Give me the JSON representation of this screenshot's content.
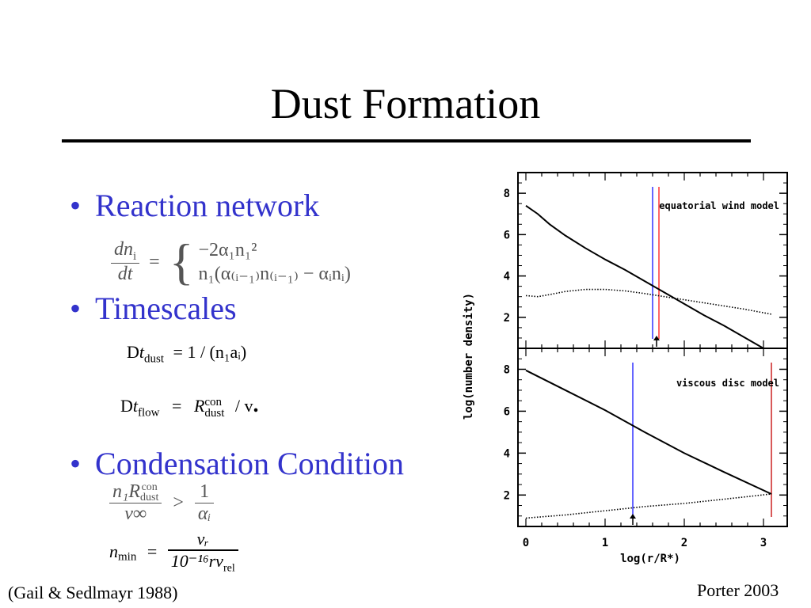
{
  "slide": {
    "title": "Dust Formation",
    "bullets": [
      "Reaction network",
      "Timescales",
      "Condensation Condition"
    ],
    "citation_left": "(Gail & Sedlmayr 1988)",
    "citation_right": "Porter 2003"
  },
  "equations": {
    "reaction": {
      "lhs_num": "dn",
      "lhs_num_sub": "i",
      "lhs_den": "dt",
      "eq": "=",
      "case1": "−2α₁n₁²",
      "case2": "n₁(α₍ᵢ₋₁₎n₍ᵢ₋₁₎ − αᵢnᵢ)"
    },
    "t_dust": {
      "delta": "D",
      "t": "t",
      "sub": "dust",
      "rhs": "= 1 / (n₁aᵢ)"
    },
    "t_flow": {
      "delta": "D",
      "t": "t",
      "sub": "flow",
      "eq": "=",
      "R": "R",
      "R_sup": "con",
      "R_sub": "dust",
      "rest": "/ v",
      "dot": "."
    },
    "condition": {
      "num": "n₁R",
      "num_sup": "con",
      "num_sub": "dust",
      "den": "v∞",
      "gt": ">",
      "rnum": "1",
      "rden": "αᵢ"
    },
    "nmin": {
      "lhs": "n",
      "lhs_sub": "min",
      "eq": "=",
      "num": "vᵣ",
      "den": "10⁻¹⁶rv",
      "den_sub": "rel"
    }
  },
  "chart_data": {
    "type": "line",
    "ylabel": "log(number density)",
    "xlabel": "log(r/R*)",
    "xlim": [
      -0.1,
      3.3
    ],
    "ylim": [
      0.5,
      9
    ],
    "xticks": [
      "0",
      "1",
      "2",
      "3"
    ],
    "yticks": [
      "2",
      "4",
      "6",
      "8"
    ],
    "panels": [
      {
        "label": "equatorial wind model",
        "series": [
          {
            "style": "solid",
            "x": [
              0,
              0.15,
              0.3,
              0.5,
              0.75,
              1.0,
              1.25,
              1.5,
              1.75,
              2.0,
              2.25,
              2.5,
              2.75,
              3.0
            ],
            "y": [
              7.4,
              7.0,
              6.5,
              5.95,
              5.35,
              4.8,
              4.3,
              3.75,
              3.2,
              2.65,
              2.1,
              1.6,
              1.05,
              0.5
            ]
          },
          {
            "style": "dotted",
            "x": [
              0,
              0.15,
              0.3,
              0.5,
              0.75,
              1.0,
              1.25,
              1.5,
              1.75,
              2.0,
              2.25,
              2.5,
              2.75,
              3.1
            ],
            "y": [
              3.05,
              3.0,
              3.1,
              3.25,
              3.35,
              3.35,
              3.28,
              3.15,
              3.0,
              2.85,
              2.7,
              2.55,
              2.4,
              2.15
            ]
          }
        ],
        "vlines": [
          {
            "x": 1.6,
            "color": "#3333ff"
          },
          {
            "x": 1.68,
            "color": "#ff3333"
          }
        ],
        "arrow_x": 1.65
      },
      {
        "label": "viscous disc model",
        "series": [
          {
            "style": "solid",
            "x": [
              0,
              0.5,
              1.0,
              1.5,
              2.0,
              2.5,
              3.1
            ],
            "y": [
              7.95,
              7.0,
              6.05,
              5.0,
              4.0,
              3.1,
              2.05
            ]
          },
          {
            "style": "dotted",
            "x": [
              0,
              0.5,
              1.0,
              1.5,
              2.0,
              2.5,
              3.1
            ],
            "y": [
              0.9,
              1.05,
              1.25,
              1.45,
              1.6,
              1.8,
              2.05
            ]
          }
        ],
        "vlines": [
          {
            "x": 1.35,
            "color": "#3333ff"
          },
          {
            "x": 3.1,
            "color": "#cc2222"
          }
        ],
        "arrow_x": 1.35
      }
    ]
  }
}
